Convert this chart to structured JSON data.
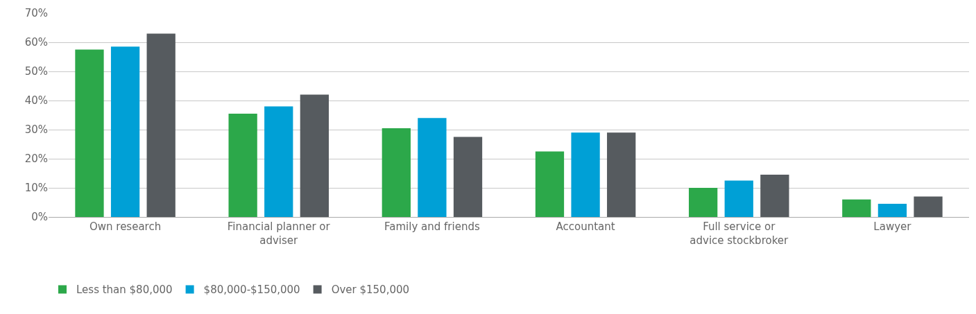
{
  "chart_data": {
    "type": "bar",
    "categories": [
      "Own research",
      "Financial planner or adviser",
      "Family and friends",
      "Accountant",
      "Full service or advice stockbroker",
      "Lawyer"
    ],
    "series": [
      {
        "name": "Less than $80,000",
        "color": "#2ca84a",
        "values": [
          57.5,
          35.5,
          30.5,
          22.5,
          10,
          6
        ]
      },
      {
        "name": "$80,000-$150,000",
        "color": "#00a0d6",
        "values": [
          58.5,
          38,
          34,
          29,
          12.5,
          4.5
        ]
      },
      {
        "name": "Over $150,000",
        "color": "#565b5f",
        "values": [
          63,
          42,
          27.5,
          29,
          14.5,
          7
        ]
      }
    ],
    "ylim": [
      0,
      70
    ],
    "yticks": [
      {
        "value": 0,
        "label": "0%"
      },
      {
        "value": 10,
        "label": "10%"
      },
      {
        "value": 20,
        "label": "20%"
      },
      {
        "value": 30,
        "label": "30%"
      },
      {
        "value": 40,
        "label": "40%"
      },
      {
        "value": 50,
        "label": "50%"
      },
      {
        "value": 60,
        "label": "60%"
      },
      {
        "value": 70,
        "label": "70%"
      }
    ],
    "grid": "y",
    "legend": "bottom left"
  }
}
